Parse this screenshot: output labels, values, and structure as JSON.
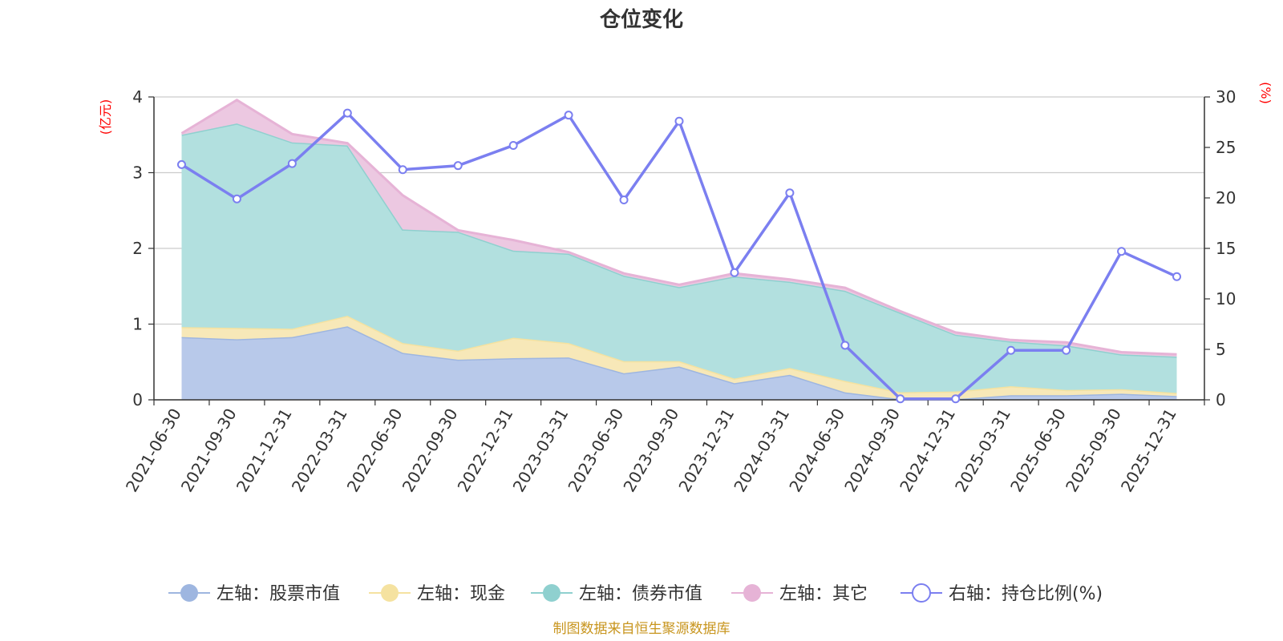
{
  "chart_data": {
    "type": "area",
    "title": "仓位变化",
    "source": "制图数据来自恒生聚源数据库",
    "left_axis": {
      "unit": "(亿元)",
      "ylim": [
        0,
        4
      ],
      "ticks": [
        "0",
        "1",
        "2",
        "3",
        "4"
      ]
    },
    "right_axis": {
      "unit": "(%)",
      "ylim": [
        0,
        30
      ],
      "ticks": [
        "0",
        "5",
        "10",
        "15",
        "20",
        "25",
        "30"
      ]
    },
    "categories": [
      "2021-06-30",
      "2021-09-30",
      "2021-12-31",
      "2022-03-31",
      "2022-06-30",
      "2022-09-30",
      "2022-12-31",
      "2023-03-31",
      "2023-06-30",
      "2023-09-30",
      "2023-12-31",
      "2024-03-31",
      "2024-06-30",
      "2024-09-30",
      "2024-12-31",
      "2025-03-31",
      "2025-06-30",
      "2025-09-30",
      "2025-12-31"
    ],
    "series": [
      {
        "name": "左轴：股票市值",
        "axis": "left",
        "stack": true,
        "color": "#9eb6e0",
        "fill": "#b8c9ea",
        "values": [
          0.83,
          0.8,
          0.83,
          0.97,
          0.62,
          0.53,
          0.55,
          0.56,
          0.35,
          0.44,
          0.22,
          0.33,
          0.1,
          0.01,
          0.01,
          0.06,
          0.06,
          0.08,
          0.05
        ]
      },
      {
        "name": "左轴：现金",
        "axis": "left",
        "stack": true,
        "color": "#f5e2a0",
        "fill": "#f7e8b8",
        "values": [
          0.13,
          0.15,
          0.11,
          0.14,
          0.13,
          0.12,
          0.27,
          0.19,
          0.16,
          0.07,
          0.06,
          0.09,
          0.15,
          0.09,
          0.1,
          0.12,
          0.07,
          0.06,
          0.04
        ]
      },
      {
        "name": "左轴：债券市值",
        "axis": "left",
        "stack": true,
        "color": "#8fd0cf",
        "fill": "#b2e0df",
        "values": [
          2.54,
          2.7,
          2.46,
          2.25,
          1.5,
          1.57,
          1.15,
          1.18,
          1.13,
          0.98,
          1.35,
          1.14,
          1.19,
          1.05,
          0.75,
          0.59,
          0.59,
          0.46,
          0.48
        ]
      },
      {
        "name": "左轴：其它",
        "axis": "left",
        "stack": true,
        "color": "#e6b3d6",
        "fill": "#ecc8e1",
        "values": [
          0.02,
          0.31,
          0.11,
          0.03,
          0.45,
          0.02,
          0.14,
          0.02,
          0.03,
          0.03,
          0.04,
          0.03,
          0.04,
          0.02,
          0.03,
          0.02,
          0.04,
          0.03,
          0.03
        ]
      },
      {
        "name": "右轴：持仓比例(%)",
        "axis": "right",
        "stack": false,
        "color": "#7b7ff0",
        "values": [
          23.3,
          19.9,
          23.4,
          28.4,
          22.8,
          23.2,
          25.2,
          28.2,
          19.8,
          27.6,
          12.6,
          20.5,
          5.4,
          0.1,
          0.1,
          4.9,
          4.9,
          14.7,
          12.2
        ]
      }
    ]
  }
}
